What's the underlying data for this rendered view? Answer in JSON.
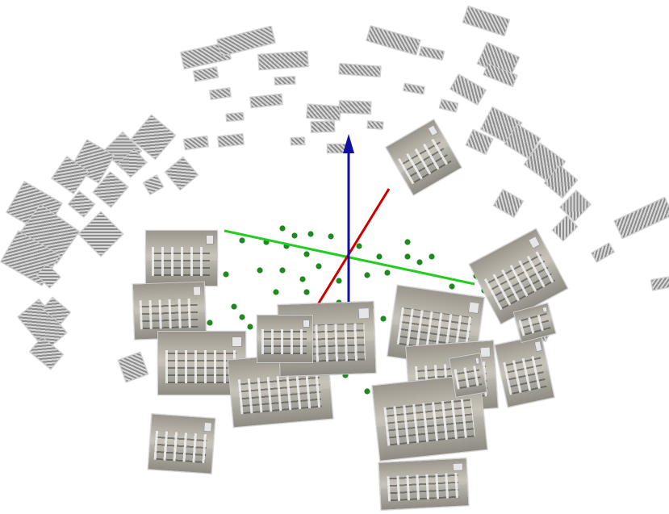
{
  "scene": {
    "axes": {
      "x_color": "#cc0000",
      "y_color": "#22cc22",
      "z_color": "#1010a0",
      "points_color": "#1f8a1f"
    },
    "camera_icon": "camera-photo-icon",
    "near_camera_count": 16,
    "far_camera_count": 56
  }
}
